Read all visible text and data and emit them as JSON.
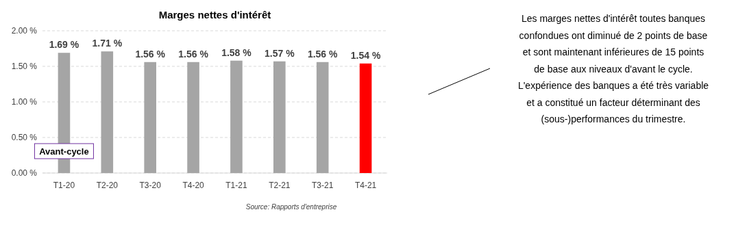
{
  "chart_data": {
    "type": "bar",
    "title": "Marges nettes d'intérêt",
    "categories": [
      "T1-20",
      "T2-20",
      "T3-20",
      "T4-20",
      "T1-21",
      "T2-21",
      "T3-21",
      "T4-21"
    ],
    "values": [
      1.69,
      1.71,
      1.56,
      1.56,
      1.58,
      1.57,
      1.56,
      1.54
    ],
    "colors": [
      "#a5a5a5",
      "#a5a5a5",
      "#a5a5a5",
      "#a5a5a5",
      "#a5a5a5",
      "#a5a5a5",
      "#a5a5a5",
      "#ff0000"
    ],
    "value_labels": [
      "1.69 %",
      "1.71 %",
      "1.56 %",
      "1.56 %",
      "1.58 %",
      "1.57 %",
      "1.56 %",
      "1.54 %"
    ],
    "ylim": [
      0,
      2
    ],
    "yticks": [
      {
        "value": 0,
        "label": "0.00 %"
      },
      {
        "value": 0.5,
        "label": "0.50 %"
      },
      {
        "value": 1,
        "label": "1.00 %"
      },
      {
        "value": 1.5,
        "label": "1.50 %"
      },
      {
        "value": 2,
        "label": "2.00 %"
      }
    ],
    "grid": "y",
    "annotations": [
      "Avant-cycle",
      "Les marges nettes d'intérêt toutes banques\nconfondues ont diminué de 2 points de base\net sont maintenant inférieures de 15 points\nde base aux niveaux d'avant le cycle.\nL'expérience des banques a été très variable\net a constitué un facteur déterminant des\n(sous-)performances du trimestre.",
      "Source: Rapports d'entreprise"
    ]
  }
}
